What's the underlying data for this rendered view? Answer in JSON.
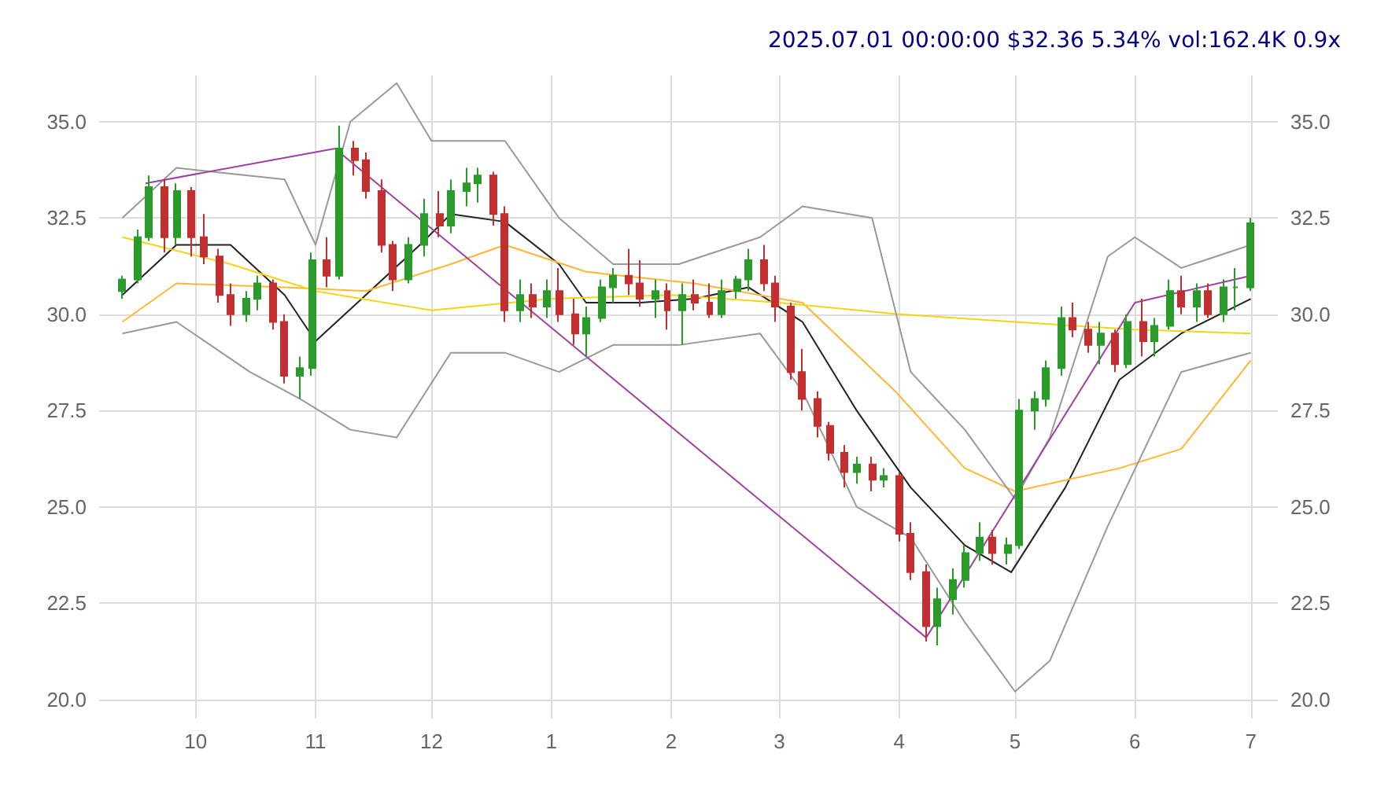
{
  "chart_data": {
    "type": "candlestick",
    "title": "2025.07.01 00:00:00 $32.36 5.34% vol:162.4K 0.9x",
    "x": [
      "2024-09-12",
      "2024-09-16",
      "2024-09-19",
      "2024-09-23",
      "2024-09-26",
      "2024-09-30",
      "2024-10-03",
      "2024-10-07",
      "2024-10-10",
      "2024-10-14",
      "2024-10-17",
      "2024-10-21",
      "2024-10-24",
      "2024-10-28",
      "2024-10-31",
      "2024-11-04",
      "2024-11-07",
      "2024-11-11",
      "2024-11-14",
      "2024-11-18",
      "2024-11-21",
      "2024-11-25",
      "2024-11-29",
      "2024-12-03",
      "2024-12-06",
      "2024-12-10",
      "2024-12-13",
      "2024-12-17",
      "2024-12-20",
      "2024-12-24",
      "2024-12-27",
      "2024-12-31",
      "2025-01-03",
      "2025-01-07",
      "2025-01-10",
      "2025-01-14",
      "2025-01-17",
      "2025-01-21",
      "2025-01-24",
      "2025-01-28",
      "2025-01-31",
      "2025-02-04",
      "2025-02-07",
      "2025-02-11",
      "2025-02-14",
      "2025-02-18",
      "2025-02-21",
      "2025-02-25",
      "2025-02-28",
      "2025-03-04",
      "2025-03-07",
      "2025-03-11",
      "2025-03-14",
      "2025-03-18",
      "2025-03-21",
      "2025-03-25",
      "2025-03-28",
      "2025-04-01",
      "2025-04-04",
      "2025-04-08",
      "2025-04-11",
      "2025-04-15",
      "2025-04-18",
      "2025-04-22",
      "2025-04-25",
      "2025-04-29",
      "2025-05-02",
      "2025-05-06",
      "2025-05-09",
      "2025-05-13",
      "2025-05-16",
      "2025-05-20",
      "2025-05-23",
      "2025-05-27",
      "2025-05-30",
      "2025-06-03",
      "2025-06-06",
      "2025-06-10",
      "2025-06-13",
      "2025-06-17",
      "2025-06-20",
      "2025-06-24",
      "2025-06-27",
      "2025-07-01"
    ],
    "ohlc": [
      [
        30.6,
        31.0,
        30.4,
        30.9
      ],
      [
        30.9,
        32.2,
        30.8,
        32.0
      ],
      [
        32.0,
        33.6,
        31.9,
        33.3
      ],
      [
        33.3,
        33.5,
        31.6,
        32.0
      ],
      [
        32.0,
        33.4,
        31.8,
        33.2
      ],
      [
        33.2,
        33.3,
        31.5,
        32.0
      ],
      [
        32.0,
        32.6,
        31.3,
        31.5
      ],
      [
        31.5,
        31.7,
        30.3,
        30.5
      ],
      [
        30.5,
        30.8,
        29.7,
        30.0
      ],
      [
        30.0,
        30.6,
        29.8,
        30.4
      ],
      [
        30.4,
        31.0,
        30.1,
        30.8
      ],
      [
        30.8,
        30.9,
        29.6,
        29.8
      ],
      [
        29.8,
        30.0,
        28.2,
        28.4
      ],
      [
        28.4,
        28.9,
        27.8,
        28.6
      ],
      [
        28.6,
        31.6,
        28.4,
        31.4
      ],
      [
        31.4,
        32.0,
        30.7,
        31.0
      ],
      [
        31.0,
        34.9,
        30.9,
        34.3
      ],
      [
        34.3,
        34.5,
        33.6,
        34.0
      ],
      [
        34.0,
        34.2,
        33.0,
        33.2
      ],
      [
        33.2,
        33.5,
        31.6,
        31.8
      ],
      [
        31.8,
        31.9,
        30.6,
        30.9
      ],
      [
        30.9,
        32.0,
        30.8,
        31.8
      ],
      [
        31.8,
        33.0,
        31.5,
        32.6
      ],
      [
        32.6,
        33.2,
        32.0,
        32.3
      ],
      [
        32.3,
        33.5,
        32.1,
        33.2
      ],
      [
        33.2,
        33.8,
        32.8,
        33.4
      ],
      [
        33.4,
        33.8,
        32.9,
        33.6
      ],
      [
        33.6,
        33.7,
        32.3,
        32.6
      ],
      [
        32.6,
        32.8,
        29.8,
        30.1
      ],
      [
        30.1,
        30.9,
        29.8,
        30.5
      ],
      [
        30.5,
        30.8,
        29.9,
        30.2
      ],
      [
        30.2,
        30.9,
        29.9,
        30.6
      ],
      [
        30.6,
        31.2,
        29.8,
        30.0
      ],
      [
        30.0,
        30.4,
        29.2,
        29.5
      ],
      [
        29.5,
        30.2,
        28.9,
        29.9
      ],
      [
        29.9,
        30.9,
        29.8,
        30.7
      ],
      [
        30.7,
        31.2,
        30.3,
        31.0
      ],
      [
        31.0,
        31.7,
        30.5,
        30.8
      ],
      [
        30.8,
        31.4,
        30.2,
        30.4
      ],
      [
        30.4,
        30.9,
        29.9,
        30.6
      ],
      [
        30.6,
        30.8,
        29.6,
        30.1
      ],
      [
        30.1,
        30.8,
        29.2,
        30.5
      ],
      [
        30.5,
        30.9,
        30.1,
        30.3
      ],
      [
        30.3,
        30.8,
        29.9,
        30.0
      ],
      [
        30.0,
        30.9,
        29.9,
        30.6
      ],
      [
        30.6,
        31.0,
        30.4,
        30.9
      ],
      [
        30.9,
        31.7,
        30.6,
        31.4
      ],
      [
        31.4,
        31.8,
        30.6,
        30.8
      ],
      [
        30.8,
        31.0,
        29.8,
        30.2
      ],
      [
        30.2,
        30.3,
        28.3,
        28.5
      ],
      [
        28.5,
        29.1,
        27.5,
        27.8
      ],
      [
        27.8,
        28.0,
        26.8,
        27.1
      ],
      [
        27.1,
        27.2,
        26.2,
        26.4
      ],
      [
        26.4,
        26.6,
        25.5,
        25.9
      ],
      [
        25.9,
        26.3,
        25.6,
        26.1
      ],
      [
        26.1,
        26.3,
        25.4,
        25.7
      ],
      [
        25.7,
        26.0,
        25.5,
        25.8
      ],
      [
        25.8,
        25.9,
        24.1,
        24.3
      ],
      [
        24.3,
        24.6,
        23.1,
        23.3
      ],
      [
        23.3,
        23.5,
        21.5,
        21.9
      ],
      [
        21.9,
        22.9,
        21.4,
        22.6
      ],
      [
        22.6,
        23.4,
        22.2,
        23.1
      ],
      [
        23.1,
        24.0,
        22.9,
        23.8
      ],
      [
        23.8,
        24.6,
        23.6,
        24.2
      ],
      [
        24.2,
        24.4,
        23.5,
        23.8
      ],
      [
        23.8,
        24.2,
        23.5,
        24.0
      ],
      [
        24.0,
        27.8,
        23.9,
        27.5
      ],
      [
        27.5,
        28.0,
        27.0,
        27.8
      ],
      [
        27.8,
        28.8,
        27.6,
        28.6
      ],
      [
        28.6,
        30.2,
        28.4,
        29.9
      ],
      [
        29.9,
        30.3,
        29.4,
        29.6
      ],
      [
        29.6,
        29.8,
        29.0,
        29.2
      ],
      [
        29.2,
        29.8,
        28.7,
        29.5
      ],
      [
        29.5,
        29.6,
        28.5,
        28.7
      ],
      [
        28.7,
        30.0,
        28.6,
        29.8
      ],
      [
        29.8,
        30.4,
        28.9,
        29.3
      ],
      [
        29.3,
        29.9,
        28.9,
        29.7
      ],
      [
        29.7,
        30.9,
        29.6,
        30.6
      ],
      [
        30.6,
        31.0,
        30.0,
        30.2
      ],
      [
        30.2,
        30.8,
        29.8,
        30.6
      ],
      [
        30.6,
        30.8,
        29.9,
        30.0
      ],
      [
        30.0,
        30.9,
        29.8,
        30.7
      ],
      [
        30.7,
        31.2,
        30.1,
        30.7
      ],
      [
        30.7,
        32.5,
        30.6,
        32.36
      ]
    ],
    "series": [
      {
        "type": "line",
        "color": "#222222",
        "x": [
          "2024-09-12",
          "2024-09-26",
          "2024-10-10",
          "2024-10-24",
          "2024-11-01",
          "2024-11-14",
          "2024-11-28",
          "2024-12-06",
          "2024-12-20",
          "2025-01-03",
          "2025-01-10",
          "2025-01-24",
          "2025-02-07",
          "2025-02-21",
          "2025-03-07",
          "2025-03-21",
          "2025-04-04",
          "2025-04-18",
          "2025-04-30",
          "2025-05-14",
          "2025-05-28",
          "2025-06-13",
          "2025-07-01"
        ],
        "values": [
          30.5,
          31.8,
          31.8,
          30.5,
          29.3,
          30.5,
          31.8,
          32.6,
          32.4,
          31.3,
          30.3,
          30.3,
          30.4,
          30.7,
          29.8,
          27.5,
          25.5,
          24.0,
          23.3,
          25.5,
          28.3,
          29.5,
          30.4
        ]
      },
      {
        "type": "line",
        "color": "#ffb732",
        "x": [
          "2024-09-12",
          "2024-09-26",
          "2024-10-24",
          "2024-11-14",
          "2024-12-06",
          "2024-12-20",
          "2025-01-10",
          "2025-02-07",
          "2025-03-07",
          "2025-03-31",
          "2025-04-18",
          "2025-05-01",
          "2025-05-28",
          "2025-06-13",
          "2025-07-01"
        ],
        "values": [
          29.8,
          30.8,
          30.7,
          30.6,
          31.3,
          31.8,
          31.1,
          30.8,
          30.3,
          28.0,
          26.0,
          25.4,
          26.0,
          26.5,
          28.8
        ]
      },
      {
        "type": "line",
        "color": "#f5d418",
        "x": [
          "2024-09-12",
          "2024-10-10",
          "2024-11-01",
          "2024-12-01",
          "2025-01-01",
          "2025-02-01",
          "2025-03-01",
          "2025-04-01",
          "2025-05-01",
          "2025-06-01",
          "2025-07-01"
        ],
        "values": [
          32.0,
          31.3,
          30.6,
          30.1,
          30.4,
          30.5,
          30.3,
          30.0,
          29.8,
          29.6,
          29.5
        ]
      },
      {
        "type": "line",
        "color": "#999999",
        "x": [
          "2024-09-12",
          "2024-09-26",
          "2024-10-24",
          "2024-11-01",
          "2024-11-10",
          "2024-11-22",
          "2024-12-01",
          "2024-12-20",
          "2025-01-03",
          "2025-01-17",
          "2025-02-03",
          "2025-02-24",
          "2025-03-07",
          "2025-03-25",
          "2025-04-04",
          "2025-04-18",
          "2025-05-01",
          "2025-05-10",
          "2025-05-25",
          "2025-06-01",
          "2025-06-13",
          "2025-07-01"
        ],
        "values": [
          32.5,
          33.8,
          33.5,
          31.8,
          35.0,
          36.0,
          34.5,
          34.5,
          32.5,
          31.3,
          31.3,
          32.0,
          32.8,
          32.5,
          28.5,
          27.0,
          25.2,
          26.8,
          31.5,
          32.0,
          31.2,
          31.8
        ]
      },
      {
        "type": "line",
        "color": "#999999",
        "x": [
          "2024-09-12",
          "2024-09-26",
          "2024-10-15",
          "2024-10-28",
          "2024-11-10",
          "2024-11-22",
          "2024-12-06",
          "2024-12-20",
          "2025-01-03",
          "2025-01-17",
          "2025-02-03",
          "2025-02-24",
          "2025-03-07",
          "2025-03-21",
          "2025-04-04",
          "2025-04-18",
          "2025-05-01",
          "2025-05-10",
          "2025-05-25",
          "2025-06-13",
          "2025-07-01"
        ],
        "values": [
          29.5,
          29.8,
          28.5,
          27.8,
          27.0,
          26.8,
          29.0,
          29.0,
          28.5,
          29.2,
          29.2,
          29.5,
          28.0,
          25.0,
          24.2,
          22.0,
          20.2,
          21.0,
          24.5,
          28.5,
          29.0
        ]
      },
      {
        "type": "line",
        "color": "#a040a0",
        "x": [
          "2024-09-18",
          "2024-11-06",
          "2025-04-08",
          "2025-06-01",
          "2025-07-01"
        ],
        "values": [
          33.4,
          34.3,
          21.6,
          30.3,
          31.0
        ]
      }
    ],
    "xlim": [
      "2024-09-06",
      "2025-07-08"
    ],
    "xticks": [
      {
        "value": "2024-10-01",
        "label": "10"
      },
      {
        "value": "2024-11-01",
        "label": "11"
      },
      {
        "value": "2024-12-01",
        "label": "12"
      },
      {
        "value": "2025-01-01",
        "label": "1"
      },
      {
        "value": "2025-02-01",
        "label": "2"
      },
      {
        "value": "2025-03-01",
        "label": "3"
      },
      {
        "value": "2025-04-01",
        "label": "4"
      },
      {
        "value": "2025-05-01",
        "label": "5"
      },
      {
        "value": "2025-06-01",
        "label": "6"
      },
      {
        "value": "2025-07-01",
        "label": "7"
      }
    ],
    "ylim": [
      19.5,
      36.2
    ],
    "yticks": [
      {
        "value": 20,
        "label": "20.0"
      },
      22.5,
      {
        "value": 25,
        "label": "25.0"
      },
      27.5,
      {
        "value": 30,
        "label": "30.0"
      },
      32.5,
      {
        "value": 35,
        "label": "35.0"
      }
    ],
    "y2lim": [
      19.5,
      36.2
    ],
    "y2ticks": [
      {
        "value": 20,
        "label": "20.0"
      },
      22.5,
      {
        "value": 25,
        "label": "25.0"
      },
      27.5,
      {
        "value": 30,
        "label": "30.0"
      },
      32.5,
      {
        "value": 35,
        "label": "35.0"
      }
    ],
    "grid": true
  }
}
